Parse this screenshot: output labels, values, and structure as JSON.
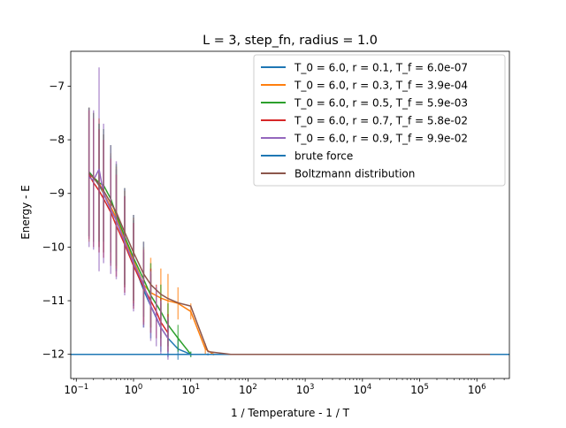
{
  "chart_data": {
    "type": "line",
    "title": "L = 3, step_fn, radius = 1.0",
    "xlabel": "1 / Temperature - 1 / T",
    "ylabel": "Energy - E",
    "x_scale": "log",
    "xlim": [
      0.08,
      3700000
    ],
    "ylim": [
      -12.45,
      -6.35
    ],
    "x_ticks": [
      {
        "value": 0.1,
        "base": "10",
        "exp": "−1"
      },
      {
        "value": 1,
        "base": "10",
        "exp": "0"
      },
      {
        "value": 10,
        "base": "10",
        "exp": "1"
      },
      {
        "value": 100,
        "base": "10",
        "exp": "2"
      },
      {
        "value": 1000,
        "base": "10",
        "exp": "3"
      },
      {
        "value": 10000,
        "base": "10",
        "exp": "4"
      },
      {
        "value": 100000,
        "base": "10",
        "exp": "5"
      },
      {
        "value": 1000000,
        "base": "10",
        "exp": "6"
      }
    ],
    "y_ticks": [
      {
        "value": -7,
        "label": "−7"
      },
      {
        "value": -8,
        "label": "−8"
      },
      {
        "value": -9,
        "label": "−9"
      },
      {
        "value": -10,
        "label": "−10"
      },
      {
        "value": -11,
        "label": "−11"
      },
      {
        "value": -12,
        "label": "−12"
      }
    ],
    "legend_position": "top-right",
    "series": [
      {
        "name": "T_0 = 6.0, r = 0.1, T_f = 6.0e-07",
        "color": "#1f77b4",
        "x": [
          0.167,
          0.2,
          0.25,
          0.3,
          0.4,
          0.5,
          0.7,
          1.0,
          1.5,
          2.0,
          3.0,
          4.0,
          6.0,
          10,
          20,
          50,
          100,
          1000,
          100000,
          1700000
        ],
        "y": [
          -8.6,
          -8.7,
          -8.85,
          -9.0,
          -9.3,
          -9.5,
          -9.9,
          -10.3,
          -10.8,
          -11.1,
          -11.5,
          -11.7,
          -11.9,
          -12.0,
          -12.0,
          -12.0,
          -12.0,
          -12.0,
          -12.0,
          -12.0
        ],
        "yerr": [
          1.2,
          1.2,
          1.15,
          1.1,
          1.0,
          0.95,
          0.85,
          0.8,
          0.7,
          0.6,
          0.45,
          0.35,
          0.2,
          0.05,
          0.02,
          0.01,
          0,
          0,
          0,
          0
        ]
      },
      {
        "name": "T_0 = 6.0, r = 0.3, T_f = 3.9e-04",
        "color": "#ff7f0e",
        "x": [
          0.167,
          0.2,
          0.25,
          0.3,
          0.4,
          0.5,
          0.7,
          1.0,
          1.5,
          2.0,
          3.0,
          4.0,
          6.0,
          10,
          18,
          25
        ],
        "y": [
          -8.65,
          -8.7,
          -8.8,
          -9.0,
          -9.25,
          -9.45,
          -9.85,
          -10.25,
          -10.7,
          -10.85,
          -10.95,
          -11.0,
          -11.05,
          -11.2,
          -11.9,
          -12.0
        ],
        "yerr": [
          1.25,
          1.2,
          1.2,
          1.1,
          1.0,
          0.95,
          0.9,
          0.8,
          0.7,
          0.65,
          0.55,
          0.5,
          0.3,
          0.15,
          0.1,
          0.02
        ]
      },
      {
        "name": "T_0 = 6.0, r = 0.5, T_f = 5.9e-03",
        "color": "#2ca02c",
        "x": [
          0.167,
          0.2,
          0.25,
          0.3,
          0.4,
          0.5,
          0.7,
          1.0,
          1.5,
          2.0,
          3.0,
          4.0,
          6.0,
          10
        ],
        "y": [
          -8.6,
          -8.7,
          -8.8,
          -8.85,
          -9.1,
          -9.4,
          -9.8,
          -10.2,
          -10.6,
          -10.9,
          -11.2,
          -11.45,
          -11.7,
          -12.0
        ],
        "yerr": [
          1.2,
          1.2,
          1.1,
          1.05,
          1.0,
          0.95,
          0.9,
          0.8,
          0.7,
          0.6,
          0.5,
          0.4,
          0.25,
          0.05
        ]
      },
      {
        "name": "T_0 = 6.0, r = 0.7, T_f = 5.8e-02",
        "color": "#d62728",
        "x": [
          0.167,
          0.2,
          0.25,
          0.3,
          0.4,
          0.5,
          0.7,
          1.0,
          1.5,
          2.0,
          2.5,
          3.0,
          4.0
        ],
        "y": [
          -8.65,
          -8.8,
          -8.95,
          -9.1,
          -9.35,
          -9.6,
          -9.95,
          -10.35,
          -10.75,
          -11.0,
          -11.2,
          -11.4,
          -11.6
        ],
        "yerr": [
          1.2,
          1.2,
          1.15,
          1.1,
          1.0,
          0.95,
          0.9,
          0.8,
          0.7,
          0.6,
          0.5,
          0.45,
          0.35
        ]
      },
      {
        "name": "T_0 = 6.0, r = 0.9, T_f = 9.9e-02",
        "color": "#9467bd",
        "x": [
          0.167,
          0.2,
          0.25,
          0.3,
          0.4,
          0.5,
          0.7,
          1.0,
          1.5,
          2.0,
          2.5,
          3.0,
          4.0
        ],
        "y": [
          -8.7,
          -8.75,
          -8.55,
          -9.0,
          -9.3,
          -9.5,
          -9.9,
          -10.3,
          -10.7,
          -11.1,
          -11.3,
          -11.5,
          -11.7
        ],
        "yerr": [
          1.3,
          1.3,
          1.9,
          1.3,
          1.2,
          1.1,
          1.0,
          0.9,
          0.8,
          0.65,
          0.55,
          0.5,
          0.4
        ]
      },
      {
        "name": "brute force",
        "color": "#1f77b4",
        "hline": -12.0
      },
      {
        "name": "Boltzmann distribution",
        "color": "#8c564b",
        "x": [
          0.167,
          0.2,
          0.3,
          0.5,
          0.7,
          1.0,
          1.5,
          2.0,
          3.0,
          4.0,
          6.0,
          10,
          15,
          20,
          50,
          100,
          200,
          1000,
          100000,
          1700000
        ],
        "y": [
          -8.63,
          -8.71,
          -8.95,
          -9.35,
          -9.72,
          -10.1,
          -10.5,
          -10.7,
          -10.88,
          -10.96,
          -11.04,
          -11.1,
          -11.6,
          -11.95,
          -12.0,
          -12.0,
          -12.0,
          -12.0,
          -12.0,
          -12.0
        ]
      }
    ]
  }
}
